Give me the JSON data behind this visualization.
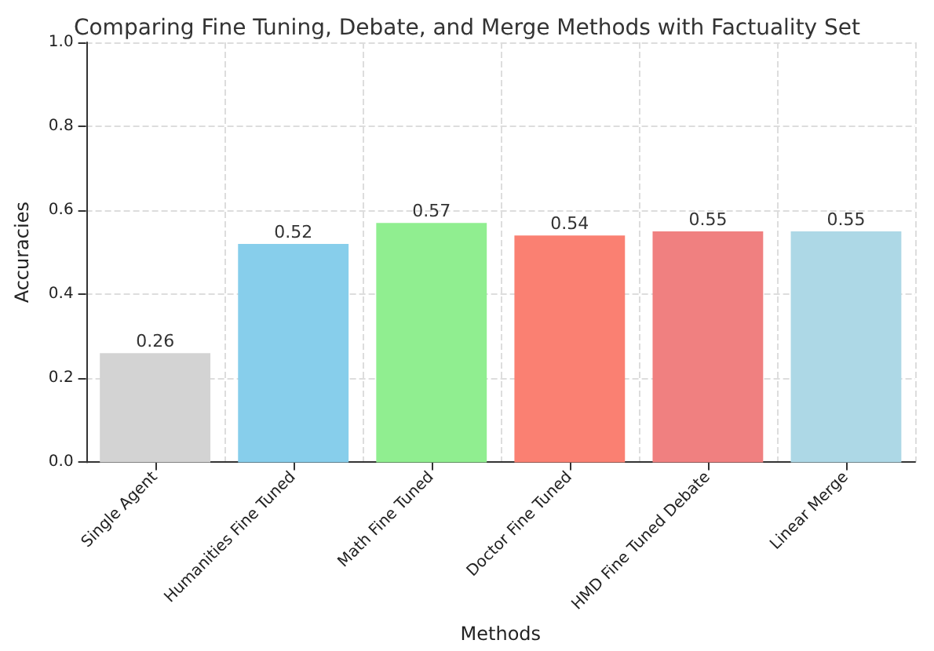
{
  "chart_data": {
    "type": "bar",
    "title": "Comparing Fine Tuning, Debate, and Merge Methods with Factuality Set",
    "xlabel": "Methods",
    "ylabel": "Accuracies",
    "categories": [
      "Single Agent",
      "Humanities Fine Tuned",
      "Math Fine Tuned",
      "Doctor Fine Tuned",
      "HMD Fine Tuned Debate",
      "Linear Merge"
    ],
    "values": [
      0.26,
      0.52,
      0.57,
      0.54,
      0.55,
      0.55
    ],
    "colors": [
      "#d3d3d3",
      "#87ceeb",
      "#90ee90",
      "#fa8072",
      "#f08080",
      "#add8e6"
    ],
    "ylim": [
      0,
      1
    ],
    "yticks": [
      {
        "value": 0,
        "label": "0.0"
      },
      0.2,
      0.4,
      0.6,
      0.8,
      {
        "value": 1,
        "label": "1.0"
      }
    ],
    "grid": true,
    "data_labels": true
  }
}
